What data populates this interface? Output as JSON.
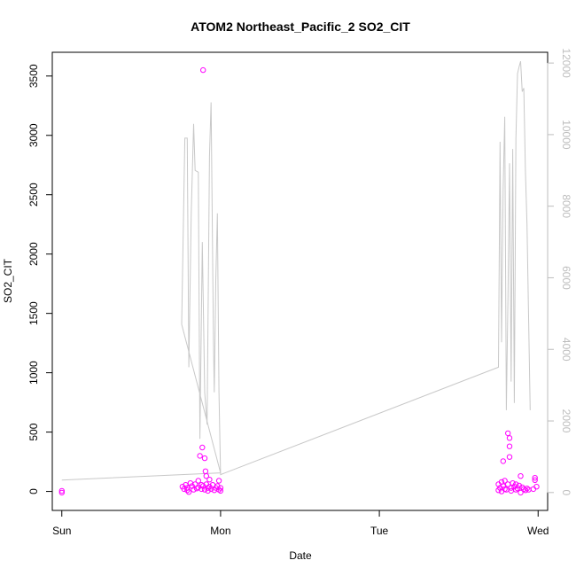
{
  "chart_data": {
    "type": "scatter",
    "title": "ATOM2 Northeast_Pacific_2 SO2_CIT",
    "xlabel": "Date",
    "ylabel": "SO2_CIT",
    "x_ticks": [
      "Sun",
      "Mon",
      "Tue",
      "Wed"
    ],
    "y_ticks": [
      0,
      500,
      1000,
      1500,
      2000,
      2500,
      3000,
      3500
    ],
    "y_ticks_right": [
      0,
      2000,
      4000,
      6000,
      8000,
      10000,
      12000
    ],
    "ylim": [
      -160,
      3700
    ],
    "ylim_right": [
      -500,
      12300
    ],
    "xlim": [
      -0.06,
      3.06
    ],
    "grid": false,
    "colors": {
      "points": "#ff00ff",
      "line": "#c8c8c8",
      "right_axis": "#bdbdbd"
    },
    "series": [
      {
        "values_axis": "left",
        "mark": "circle",
        "points": [
          [
            0.0,
            -10
          ],
          [
            0.0,
            5
          ],
          [
            0.76,
            40
          ],
          [
            0.77,
            20
          ],
          [
            0.78,
            55
          ],
          [
            0.79,
            10
          ],
          [
            0.79,
            30
          ],
          [
            0.8,
            -5
          ],
          [
            0.81,
            70
          ],
          [
            0.82,
            45
          ],
          [
            0.83,
            15
          ],
          [
            0.84,
            60
          ],
          [
            0.85,
            25
          ],
          [
            0.86,
            90
          ],
          [
            0.86,
            35
          ],
          [
            0.87,
            300
          ],
          [
            0.88,
            55
          ],
          [
            0.88,
            20
          ],
          [
            0.885,
            370
          ],
          [
            0.89,
            3550
          ],
          [
            0.89,
            45
          ],
          [
            0.9,
            280
          ],
          [
            0.9,
            15
          ],
          [
            0.905,
            170
          ],
          [
            0.91,
            130
          ],
          [
            0.91,
            60
          ],
          [
            0.92,
            30
          ],
          [
            0.92,
            5
          ],
          [
            0.93,
            100
          ],
          [
            0.93,
            40
          ],
          [
            0.94,
            20
          ],
          [
            0.95,
            55
          ],
          [
            0.96,
            10
          ],
          [
            0.97,
            30
          ],
          [
            0.98,
            45
          ],
          [
            0.99,
            90
          ],
          [
            0.99,
            15
          ],
          [
            1.0,
            30
          ],
          [
            1.0,
            5
          ],
          [
            2.75,
            10
          ],
          [
            2.75,
            60
          ],
          [
            2.76,
            30
          ],
          [
            2.77,
            0
          ],
          [
            2.77,
            80
          ],
          [
            2.78,
            255
          ],
          [
            2.78,
            45
          ],
          [
            2.79,
            20
          ],
          [
            2.79,
            90
          ],
          [
            2.8,
            15
          ],
          [
            2.81,
            490
          ],
          [
            2.81,
            60
          ],
          [
            2.82,
            450
          ],
          [
            2.82,
            380
          ],
          [
            2.82,
            290
          ],
          [
            2.83,
            30
          ],
          [
            2.83,
            5
          ],
          [
            2.84,
            70
          ],
          [
            2.85,
            40
          ],
          [
            2.86,
            15
          ],
          [
            2.86,
            60
          ],
          [
            2.87,
            25
          ],
          [
            2.88,
            50
          ],
          [
            2.89,
            -10
          ],
          [
            2.89,
            130
          ],
          [
            2.9,
            35
          ],
          [
            2.91,
            20
          ],
          [
            2.92,
            10
          ],
          [
            2.93,
            25
          ],
          [
            2.94,
            15
          ],
          [
            2.97,
            20
          ],
          [
            2.98,
            95
          ],
          [
            2.98,
            115
          ],
          [
            2.99,
            40
          ]
        ]
      },
      {
        "values_axis": "right",
        "mark": "line",
        "points": [
          [
            0.0,
            350
          ],
          [
            1.0,
            550
          ],
          [
            0.755,
            4700
          ],
          [
            0.775,
            9900
          ],
          [
            0.79,
            9900
          ],
          [
            0.8,
            3500
          ],
          [
            0.815,
            7800
          ],
          [
            0.83,
            10300
          ],
          [
            0.84,
            9000
          ],
          [
            0.86,
            8950
          ],
          [
            0.87,
            1500
          ],
          [
            0.885,
            7000
          ],
          [
            0.9,
            2800
          ],
          [
            0.915,
            1900
          ],
          [
            0.93,
            9400
          ],
          [
            0.94,
            10900
          ],
          [
            0.955,
            4200
          ],
          [
            0.96,
            2800
          ],
          [
            0.97,
            5900
          ],
          [
            0.98,
            7800
          ],
          [
            0.99,
            2800
          ],
          [
            1.0,
            500
          ],
          [
            2.75,
            3500
          ],
          [
            2.76,
            9800
          ],
          [
            2.77,
            4200
          ],
          [
            2.78,
            8500
          ],
          [
            2.79,
            10500
          ],
          [
            2.8,
            2300
          ],
          [
            2.81,
            5400
          ],
          [
            2.82,
            9200
          ],
          [
            2.83,
            3100
          ],
          [
            2.84,
            9600
          ],
          [
            2.85,
            2500
          ],
          [
            2.86,
            9900
          ],
          [
            2.87,
            11700
          ],
          [
            2.88,
            11900
          ],
          [
            2.89,
            12050
          ],
          [
            2.9,
            11200
          ],
          [
            2.91,
            11300
          ],
          [
            2.92,
            9000
          ],
          [
            2.93,
            7500
          ],
          [
            2.95,
            2300
          ]
        ]
      }
    ]
  }
}
